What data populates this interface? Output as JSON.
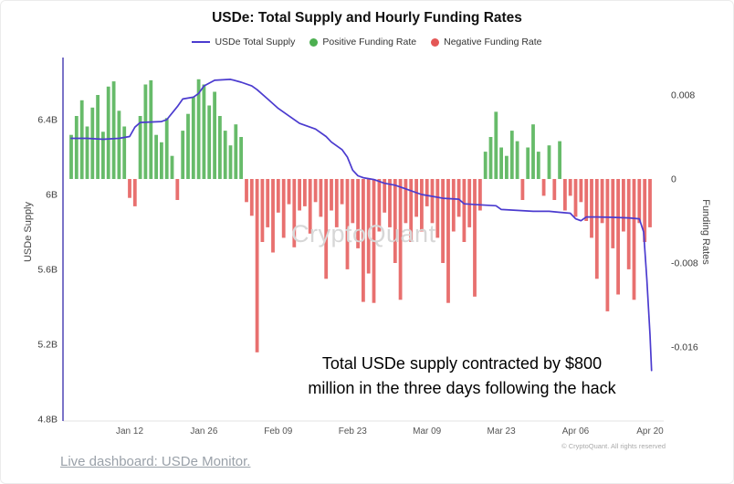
{
  "chart": {
    "title": "USDe: Total Supply and Hourly Funding Rates",
    "watermark": "CryptoQuant",
    "copyright": "© CryptoQuant. All rights reserved",
    "annotation_line1": "Total USDe supply contracted by $800",
    "annotation_line2": "million in the three days following the hack",
    "legend": [
      {
        "label": "USDe Total Supply",
        "marker": "line",
        "color": "#4b3bcf"
      },
      {
        "label": "Positive Funding Rate",
        "marker": "circle",
        "color": "#4caf50"
      },
      {
        "label": "Negative Funding Rate",
        "marker": "circle",
        "color": "#e45756"
      }
    ]
  },
  "footer": {
    "link_text": "Live dashboard: USDe Monitor."
  },
  "chart_data": {
    "type": "line+bar",
    "title": "USDe: Total Supply and Hourly Funding Rates",
    "x_axis": {
      "unit": "date",
      "tick_days": [
        12,
        26,
        40,
        54,
        68,
        82,
        96,
        110
      ],
      "tick_labels": [
        "Jan 12",
        "Jan 26",
        "Feb 09",
        "Feb 23",
        "Mar 09",
        "Mar 23",
        "Apr 06",
        "Apr 20"
      ],
      "domain_days": [
        1,
        110.5
      ]
    },
    "left_axis": {
      "label": "USDe Supply",
      "tick_values": [
        4.8,
        5.2,
        5.6,
        6.0,
        6.4
      ],
      "tick_labels": [
        "4.8B",
        "5.2B",
        "5.6B",
        "6B",
        "6.4B"
      ],
      "range": [
        4.79,
        6.72
      ]
    },
    "right_axis": {
      "label": "Funding Rates",
      "tick_values": [
        0.008,
        0,
        -0.008,
        -0.016
      ],
      "tick_labels": [
        "0.008",
        "0",
        "-0.008",
        "-0.016"
      ],
      "range": [
        -0.0235,
        0.0113
      ]
    },
    "supply_line": {
      "name": "USDe Total Supply",
      "color": "#4b3bcf",
      "unit": "billions USD",
      "points": [
        [
          1,
          6.3
        ],
        [
          4,
          6.3
        ],
        [
          7,
          6.295
        ],
        [
          10,
          6.3
        ],
        [
          12,
          6.31
        ],
        [
          13,
          6.36
        ],
        [
          14,
          6.385
        ],
        [
          18,
          6.39
        ],
        [
          19,
          6.4
        ],
        [
          21,
          6.47
        ],
        [
          22,
          6.51
        ],
        [
          24,
          6.52
        ],
        [
          25,
          6.54
        ],
        [
          26,
          6.58
        ],
        [
          28,
          6.61
        ],
        [
          31,
          6.615
        ],
        [
          33,
          6.6
        ],
        [
          35,
          6.58
        ],
        [
          36,
          6.56
        ],
        [
          38,
          6.51
        ],
        [
          40,
          6.46
        ],
        [
          42,
          6.42
        ],
        [
          44,
          6.38
        ],
        [
          47,
          6.35
        ],
        [
          49,
          6.31
        ],
        [
          50,
          6.28
        ],
        [
          52,
          6.24
        ],
        [
          53,
          6.2
        ],
        [
          54,
          6.13
        ],
        [
          55,
          6.1
        ],
        [
          56,
          6.09
        ],
        [
          58,
          6.08
        ],
        [
          60,
          6.06
        ],
        [
          62,
          6.05
        ],
        [
          64,
          6.03
        ],
        [
          66,
          6.01
        ],
        [
          67,
          6.0
        ],
        [
          69,
          5.99
        ],
        [
          71,
          5.98
        ],
        [
          74,
          5.975
        ],
        [
          75,
          5.95
        ],
        [
          78,
          5.945
        ],
        [
          81,
          5.94
        ],
        [
          82,
          5.92
        ],
        [
          85,
          5.915
        ],
        [
          88,
          5.91
        ],
        [
          91,
          5.91
        ],
        [
          93,
          5.905
        ],
        [
          95,
          5.9
        ],
        [
          96,
          5.87
        ],
        [
          97,
          5.86
        ],
        [
          98,
          5.88
        ],
        [
          100,
          5.88
        ],
        [
          103,
          5.878
        ],
        [
          106,
          5.875
        ],
        [
          108,
          5.87
        ],
        [
          108.8,
          5.8
        ],
        [
          109.4,
          5.55
        ],
        [
          110,
          5.25
        ],
        [
          110.3,
          5.06
        ]
      ]
    },
    "funding_bars": {
      "positive_name": "Positive Funding Rate",
      "negative_name": "Negative Funding Rate",
      "positive_color": "#4caf50",
      "negative_color": "#e45756",
      "start_day": 1,
      "daily_values": [
        0.0042,
        0.006,
        0.0075,
        0.005,
        0.0068,
        0.008,
        0.0045,
        0.0088,
        0.0093,
        0.0065,
        0.005,
        -0.0018,
        -0.0026,
        0.006,
        0.009,
        0.0094,
        0.0042,
        0.0035,
        0.0058,
        0.0022,
        -0.002,
        0.0046,
        0.0062,
        0.0078,
        0.0095,
        0.009,
        0.007,
        0.0083,
        0.006,
        0.0046,
        0.0032,
        0.0052,
        0.004,
        -0.0022,
        -0.0035,
        -0.0165,
        -0.006,
        -0.0046,
        -0.007,
        -0.0032,
        -0.0056,
        -0.0024,
        -0.0065,
        -0.003,
        -0.0026,
        -0.0052,
        -0.0022,
        -0.0036,
        -0.0095,
        -0.003,
        -0.0046,
        -0.0024,
        -0.0086,
        -0.0042,
        -0.0066,
        -0.0117,
        -0.009,
        -0.0118,
        -0.005,
        -0.0032,
        -0.0046,
        -0.008,
        -0.0115,
        -0.0042,
        -0.006,
        -0.0036,
        -0.005,
        -0.0026,
        -0.0042,
        -0.0056,
        -0.008,
        -0.0118,
        -0.005,
        -0.0036,
        -0.006,
        -0.0046,
        -0.0112,
        -0.003,
        0.0026,
        0.004,
        0.0064,
        0.003,
        0.0022,
        0.0046,
        0.0036,
        -0.002,
        0.003,
        0.0052,
        0.0026,
        -0.0016,
        0.0032,
        -0.002,
        0.0036,
        -0.003,
        -0.0016,
        -0.0036,
        -0.0022,
        -0.004,
        -0.0056,
        -0.0095,
        -0.0042,
        -0.0126,
        -0.0066,
        -0.011,
        -0.005,
        -0.0086,
        -0.0115,
        -0.0042,
        -0.006,
        -0.0046
      ]
    },
    "annotation": "Total USDe supply contracted by $800 million in the three days following the hack"
  }
}
